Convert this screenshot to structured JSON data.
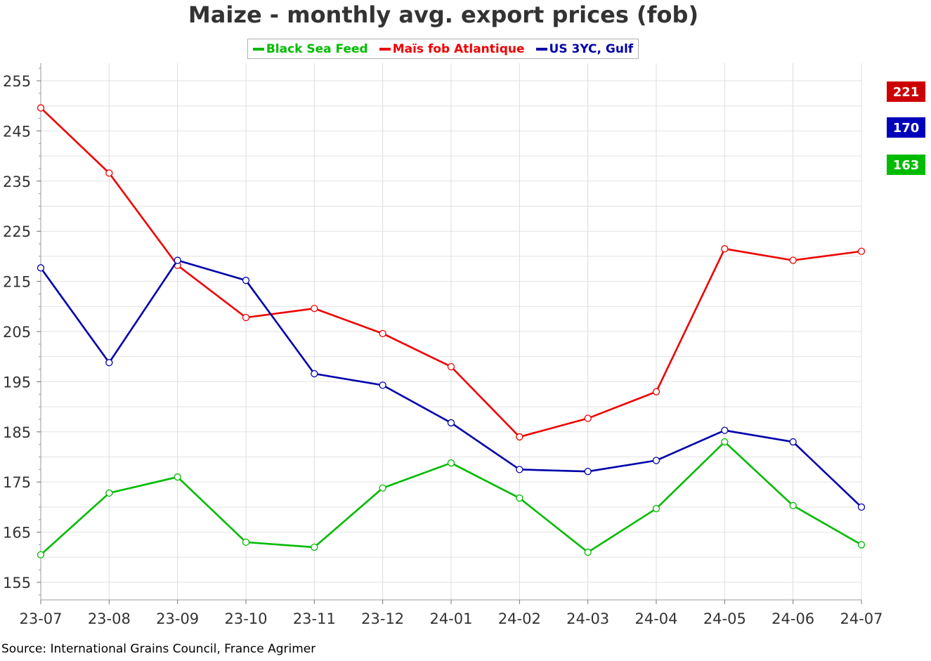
{
  "colors": {
    "green": "#00bb00",
    "red": "#ee0000",
    "blue": "#0000aa",
    "badge_red": "#cc0000",
    "badge_blue": "#0000bb",
    "badge_green": "#00bb00"
  },
  "chart_data": {
    "type": "line",
    "title": "Maize - monthly avg. export prices (fob)",
    "categories": [
      "23-07",
      "23-08",
      "23-09",
      "23-10",
      "23-11",
      "23-12",
      "24-01",
      "24-02",
      "24-03",
      "24-04",
      "24-05",
      "24-06",
      "24-07"
    ],
    "ylim": [
      151.5,
      258.5
    ],
    "yticks": [
      155,
      165,
      175,
      185,
      195,
      205,
      215,
      225,
      235,
      245,
      255
    ],
    "grid": true,
    "legend_position": "top-center",
    "series": [
      {
        "name": "Black Sea Feed",
        "color": "#00bb00",
        "values": [
          160.5,
          172.8,
          176,
          163,
          162,
          173.8,
          178.8,
          171.8,
          161,
          169.7,
          183,
          170.3,
          162.5
        ]
      },
      {
        "name": "Maïs fob Atlantique",
        "color": "#ee0000",
        "values": [
          249.6,
          236.6,
          218.2,
          207.8,
          209.6,
          204.6,
          198,
          184,
          187.7,
          193,
          221.5,
          219.2,
          221
        ]
      },
      {
        "name": "US 3YC, Gulf",
        "color": "#0000aa",
        "values": [
          217.7,
          198.8,
          219.2,
          215.2,
          196.6,
          194.3,
          186.8,
          177.5,
          177.1,
          179.3,
          185.3,
          183,
          170
        ]
      }
    ],
    "last_value_badges": [
      {
        "label": "221",
        "color": "#cc0000"
      },
      {
        "label": "170",
        "color": "#0000bb"
      },
      {
        "label": "163",
        "color": "#00bb00"
      }
    ]
  },
  "legend": [
    {
      "label": "Black Sea Feed",
      "color": "#00bb00"
    },
    {
      "label": "Maïs fob Atlantique",
      "color": "#ee0000"
    },
    {
      "label": "US 3YC, Gulf",
      "color": "#0000aa"
    }
  ],
  "source": "Source: International Grains Council, France Agrimer"
}
